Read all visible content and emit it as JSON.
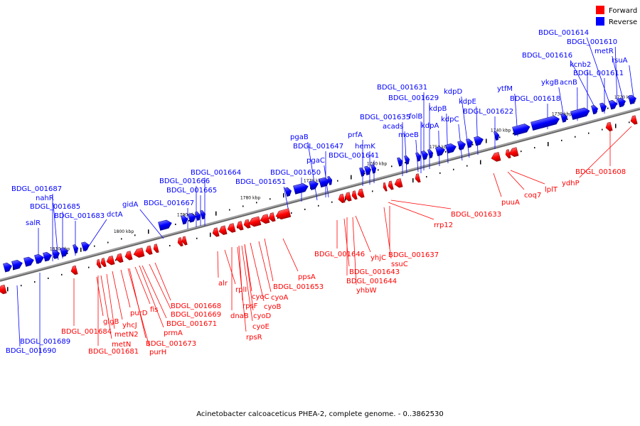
{
  "legend": {
    "forward": {
      "label": "Forward",
      "color": "#ff0000"
    },
    "reverse": {
      "label": "Reverse",
      "color": "#0000ff"
    }
  },
  "caption": "Acinetobacter calcoaceticus PHEA-2, complete genome. - 0..3862530",
  "ruler": [
    "1720 kbp",
    "1730 kbp",
    "1740 kbp",
    "1750 kbp",
    "1760 kbp",
    "1770 kbp",
    "1780 kbp",
    "1790 kbp",
    "1800 kbp",
    "1810 kbp"
  ],
  "genes": {
    "reverse": [
      "BDGL_001614",
      "BDGL_001610",
      "metR",
      "rsuA",
      "BDGL_001616",
      "kcnb2",
      "BDGL_001611",
      "ykgB",
      "acnB",
      "ytfM",
      "BDGL_001618",
      "kdpD",
      "BDGL_001631",
      "BDGL_001629",
      "kdpE",
      "BDGL_001622",
      "kdpB",
      "folB",
      "BDGL_001635",
      "kdpC",
      "acads",
      "kdpA",
      "moeB",
      "prfA",
      "pgaB",
      "BDGL_001647",
      "hemK",
      "pgaC",
      "BDGL_001641",
      "BDGL_001650",
      "BDGL_001651",
      "BDGL_001664",
      "BDGL_001666",
      "BDGL_001665",
      "gidA",
      "BDGL_001667",
      "dctA",
      "BDGL_001687",
      "nahR",
      "BDGL_001685",
      "BDGL_001683",
      "salR",
      "BDGL_001689",
      "BDGL_001690"
    ],
    "forward": [
      "BDGL_001608",
      "ydhP",
      "lplT",
      "coq7",
      "puuA",
      "BDGL_001633",
      "rrp12",
      "BDGL_001637",
      "ssuC",
      "yhjC",
      "BDGL_001646",
      "BDGL_001643",
      "BDGL_001644",
      "yhbW",
      "ppsA",
      "BDGL_001653",
      "cyoA",
      "cyoB",
      "cyoC",
      "rplI",
      "alr",
      "rpsF",
      "cyoD",
      "dnaB",
      "cyoE",
      "rpsR",
      "BDGL_001668",
      "BDGL_001669",
      "BDGL_001671",
      "prmA",
      "BDGL_001673",
      "purH",
      "fis",
      "purD",
      "yhcJ",
      "metN2",
      "metN",
      "BDGL_001681",
      "glgB",
      "BDGL_001684"
    ]
  }
}
